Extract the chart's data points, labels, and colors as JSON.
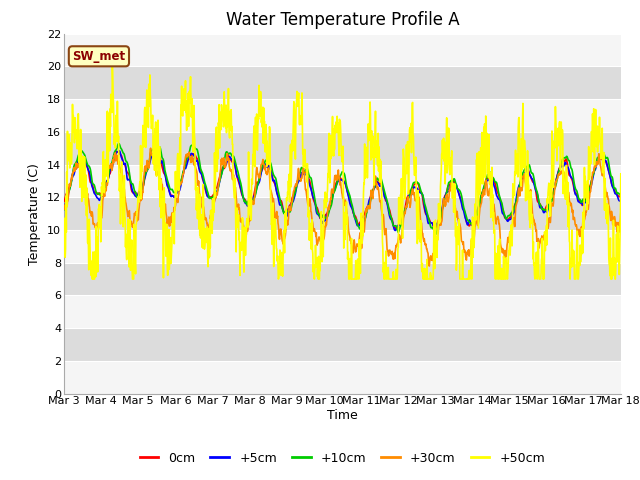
{
  "title": "Water Temperature Profile A",
  "xlabel": "Time",
  "ylabel": "Temperature (C)",
  "ylim": [
    0,
    22
  ],
  "yticks": [
    0,
    2,
    4,
    6,
    8,
    10,
    12,
    14,
    16,
    18,
    20,
    22
  ],
  "xtick_labels": [
    "Mar 3",
    "Mar 4",
    "Mar 5",
    "Mar 6",
    "Mar 7",
    "Mar 8",
    "Mar 9",
    "Mar 10",
    "Mar 11",
    "Mar 12",
    "Mar 13",
    "Mar 14",
    "Mar 15",
    "Mar 16",
    "Mar 17",
    "Mar 18"
  ],
  "annotation_text": "SW_met",
  "annotation_color": "#8B0000",
  "annotation_bg": "#FFFFC0",
  "annotation_edge": "#8B4513",
  "series_colors": [
    "#FF0000",
    "#0000FF",
    "#00CC00",
    "#FF8C00",
    "#FFFF00"
  ],
  "series_labels": [
    "0cm",
    "+5cm",
    "+10cm",
    "+30cm",
    "+50cm"
  ],
  "series_linewidths": [
    1.2,
    1.2,
    1.2,
    1.2,
    1.2
  ],
  "bg_color": "#FFFFFF",
  "plot_bg_light": "#DCDCDC",
  "plot_bg_dark": "#F5F5F5",
  "title_fontsize": 12,
  "axis_fontsize": 9,
  "tick_fontsize": 8
}
